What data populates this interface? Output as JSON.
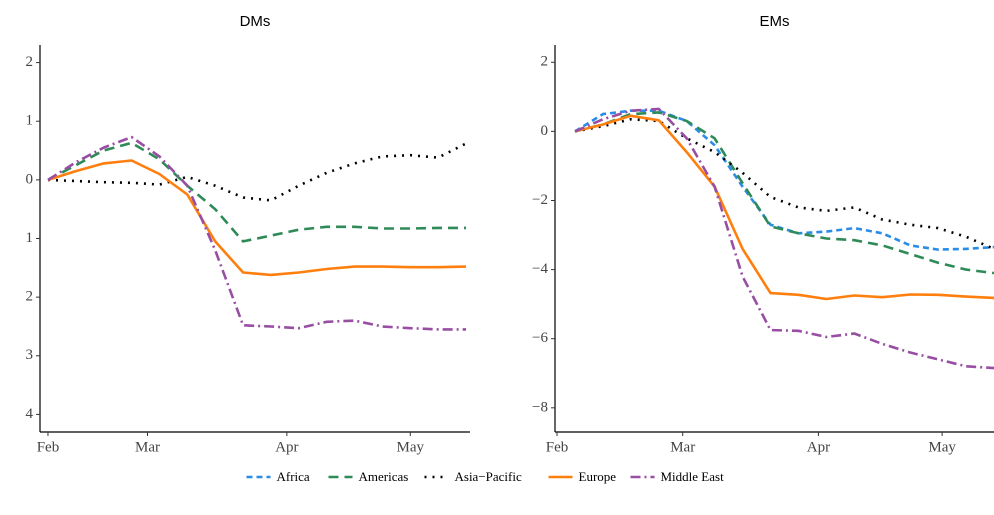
{
  "chart_data": [
    {
      "type": "line",
      "title": "DMs",
      "x": [
        0,
        7,
        14,
        21,
        28,
        35,
        42,
        49,
        56,
        63,
        70,
        77,
        84,
        91,
        98,
        105
      ],
      "xlim": [
        -2,
        106
      ],
      "xticks": [
        {
          "value": 0,
          "label": "Feb"
        },
        {
          "value": 25,
          "label": "Mar"
        },
        {
          "value": 60,
          "label": "Apr"
        },
        {
          "value": 91,
          "label": "May"
        }
      ],
      "ylim": [
        -4.3,
        2.3
      ],
      "yticks": [
        2,
        1,
        0,
        {
          "value": -1,
          "label": "1"
        },
        {
          "value": -2,
          "label": "2"
        },
        {
          "value": -3,
          "label": "3"
        },
        {
          "value": -4,
          "label": "4"
        }
      ],
      "series": [
        {
          "name": "Americas",
          "color": "#2e8b57",
          "dash": "long-dash",
          "values": [
            0,
            0.25,
            0.5,
            0.63,
            0.35,
            -0.1,
            -0.5,
            -1.05,
            -0.95,
            -0.85,
            -0.8,
            -0.8,
            -0.83,
            -0.83,
            -0.82,
            -0.82
          ]
        },
        {
          "name": "Asia−Pacific",
          "color": "#000000",
          "dash": "dotted",
          "values": [
            0,
            -0.02,
            -0.04,
            -0.05,
            -0.08,
            0.05,
            -0.1,
            -0.3,
            -0.35,
            -0.1,
            0.12,
            0.28,
            0.4,
            0.42,
            0.38,
            0.62
          ]
        },
        {
          "name": "Europe",
          "color": "#ff7f0e",
          "dash": "solid",
          "values": [
            0,
            0.15,
            0.28,
            0.33,
            0.1,
            -0.25,
            -1.05,
            -1.58,
            -1.62,
            -1.58,
            -1.52,
            -1.48,
            -1.48,
            -1.49,
            -1.49,
            -1.48
          ]
        },
        {
          "name": "Middle East",
          "color": "#984ea3",
          "dash": "dash-dot",
          "values": [
            0,
            0.3,
            0.55,
            0.73,
            0.4,
            -0.1,
            -1.2,
            -2.48,
            -2.5,
            -2.53,
            -2.42,
            -2.4,
            -2.5,
            -2.53,
            -2.55,
            -2.55
          ]
        }
      ]
    },
    {
      "type": "line",
      "title": "EMs",
      "x": [
        0,
        7,
        14,
        21,
        28,
        35,
        42,
        49,
        56,
        63,
        70,
        77,
        84,
        91,
        98,
        105
      ],
      "xlim": [
        -5,
        105
      ],
      "xticks": [
        {
          "value": -4.5,
          "label": "Feb"
        },
        {
          "value": 27,
          "label": "Mar"
        },
        {
          "value": 61,
          "label": "Apr"
        },
        {
          "value": 92,
          "label": "May"
        }
      ],
      "ylim": [
        -8.7,
        2.5
      ],
      "yticks": [
        2,
        0,
        {
          "value": -2,
          "label": "−2"
        },
        {
          "value": -4,
          "label": "−4"
        },
        {
          "value": -6,
          "label": "−6"
        },
        {
          "value": -8,
          "label": "−8"
        }
      ],
      "legend": "bottom",
      "series": [
        {
          "name": "Africa",
          "color": "#2b8ce8",
          "dash": "dashed",
          "values": [
            0,
            0.5,
            0.6,
            0.6,
            0.3,
            -0.4,
            -1.6,
            -2.7,
            -2.95,
            -2.9,
            -2.8,
            -2.95,
            -3.3,
            -3.42,
            -3.4,
            -3.35
          ]
        },
        {
          "name": "Americas",
          "color": "#2e8b57",
          "dash": "long-dash",
          "values": [
            0,
            0.2,
            0.5,
            0.55,
            0.3,
            -0.2,
            -1.5,
            -2.75,
            -2.95,
            -3.1,
            -3.15,
            -3.3,
            -3.55,
            -3.8,
            -4.0,
            -4.1
          ]
        },
        {
          "name": "Asia−Pacific",
          "color": "#000000",
          "dash": "dotted",
          "values": [
            0,
            0.15,
            0.35,
            0.3,
            -0.2,
            -0.6,
            -1.2,
            -1.9,
            -2.2,
            -2.3,
            -2.2,
            -2.55,
            -2.7,
            -2.8,
            -3.05,
            -3.4
          ]
        },
        {
          "name": "Europe",
          "color": "#ff7f0e",
          "dash": "solid",
          "values": [
            0,
            0.2,
            0.45,
            0.32,
            -0.6,
            -1.6,
            -3.4,
            -4.68,
            -4.73,
            -4.85,
            -4.75,
            -4.8,
            -4.72,
            -4.73,
            -4.78,
            -4.82
          ]
        },
        {
          "name": "Middle East",
          "color": "#984ea3",
          "dash": "dash-dot",
          "values": [
            0,
            0.35,
            0.6,
            0.65,
            -0.2,
            -1.6,
            -4.2,
            -5.75,
            -5.77,
            -5.95,
            -5.85,
            -6.15,
            -6.4,
            -6.6,
            -6.8,
            -6.85
          ]
        }
      ]
    }
  ]
}
